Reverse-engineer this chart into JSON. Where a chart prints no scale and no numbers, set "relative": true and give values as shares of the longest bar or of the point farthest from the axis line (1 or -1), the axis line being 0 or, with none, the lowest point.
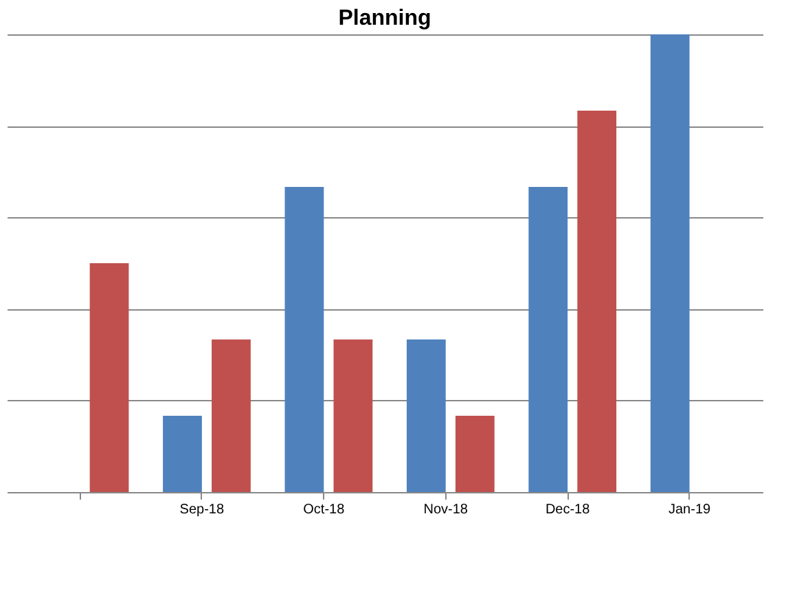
{
  "chart_data": {
    "type": "bar",
    "title": "Planning",
    "relative": true,
    "grid": "y",
    "legend": false,
    "categories": [
      null,
      "Sep-18",
      "Oct-18",
      "Nov-18",
      "Dec-18",
      "Jan-19"
    ],
    "series": [
      {
        "color": "#4f81bd",
        "values": [
          null,
          0.1667,
          0.6667,
          0.3333,
          0.6667,
          1
        ]
      },
      {
        "color": "#c0504d",
        "values": [
          0.5,
          0.3333,
          0.3333,
          0.1667,
          0.8333,
          0
        ]
      }
    ]
  }
}
